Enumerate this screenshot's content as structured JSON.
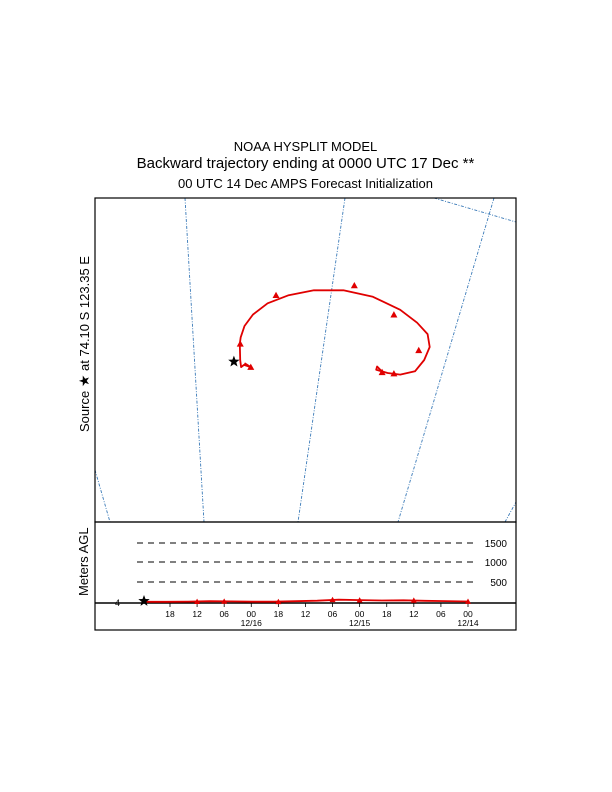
{
  "header": {
    "title": "NOAA HYSPLIT MODEL",
    "subtitle": "Backward trajectory ending at 0000 UTC 17 Dec **",
    "run_info": "00 UTC 14 Dec    AMPS  Forecast Initialization"
  },
  "source_label": {
    "prefix": "Source",
    "star": "★",
    "at": "at",
    "coords": "74.10 S  123.35 E"
  },
  "colors": {
    "trajectory": "#e00000",
    "meridian": "#3a7ab8",
    "axis": "#000000"
  },
  "chart_data": [
    {
      "type": "line",
      "panel": "trajectory-map",
      "series": [
        {
          "values": [
            [
              0.355,
              0.51
            ],
            [
              0.37,
              0.522
            ],
            [
              0.354,
              0.515
            ],
            [
              0.347,
              0.522
            ],
            [
              0.345,
              0.5
            ],
            [
              0.344,
              0.45
            ],
            [
              0.346,
              0.43
            ],
            [
              0.355,
              0.395
            ],
            [
              0.375,
              0.36
            ],
            [
              0.41,
              0.325
            ],
            [
              0.46,
              0.3
            ],
            [
              0.52,
              0.285
            ],
            [
              0.59,
              0.285
            ],
            [
              0.66,
              0.305
            ],
            [
              0.725,
              0.345
            ],
            [
              0.765,
              0.385
            ],
            [
              0.79,
              0.42
            ],
            [
              0.795,
              0.46
            ],
            [
              0.782,
              0.5
            ],
            [
              0.76,
              0.535
            ],
            [
              0.725,
              0.545
            ],
            [
              0.695,
              0.54
            ],
            [
              0.668,
              0.53
            ],
            [
              0.67,
              0.52
            ],
            [
              0.685,
              0.54
            ]
          ],
          "markers": [
            [
              0.37,
              0.522
            ],
            [
              0.345,
              0.45
            ],
            [
              0.43,
              0.3
            ],
            [
              0.616,
              0.27
            ],
            [
              0.71,
              0.36
            ],
            [
              0.769,
              0.47
            ],
            [
              0.71,
              0.542
            ],
            [
              0.682,
              0.538
            ]
          ]
        }
      ],
      "source_point": [
        0.33,
        0.505
      ]
    },
    {
      "type": "line",
      "panel": "vertical-profile",
      "ylabel": "Meters AGL",
      "y_ticks": [
        "1500",
        "1000",
        "500"
      ],
      "y_left_tick": "4",
      "x_ticks": [
        {
          "label": "18",
          "date": ""
        },
        {
          "label": "12",
          "date": ""
        },
        {
          "label": "06",
          "date": ""
        },
        {
          "label": "00",
          "date": "12/16"
        },
        {
          "label": "18",
          "date": ""
        },
        {
          "label": "12",
          "date": ""
        },
        {
          "label": "06",
          "date": ""
        },
        {
          "label": "00",
          "date": "12/15"
        },
        {
          "label": "18",
          "date": ""
        },
        {
          "label": "12",
          "date": ""
        },
        {
          "label": "06",
          "date": ""
        },
        {
          "label": "00",
          "date": "12/14"
        }
      ],
      "series": [
        {
          "values": [
            4,
            5,
            10,
            20,
            15,
            8,
            6,
            18,
            30,
            55,
            45,
            35,
            40,
            28,
            22,
            12
          ]
        }
      ]
    }
  ]
}
